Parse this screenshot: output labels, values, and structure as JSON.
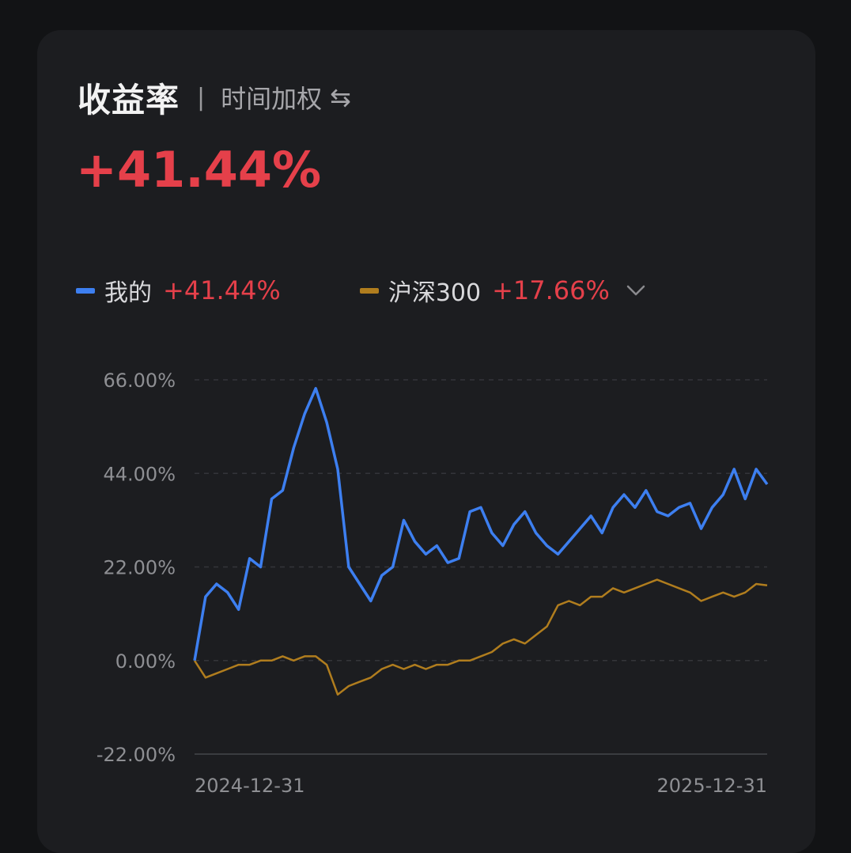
{
  "header": {
    "title": "收益率",
    "separator": "|",
    "mode": "时间加权",
    "swap_icon": "⇆"
  },
  "total_return": "+41.44%",
  "legend": [
    {
      "name": "我的",
      "value": "+41.44%",
      "color": "#3d7ff0"
    },
    {
      "name": "沪深300",
      "value": "+17.66%",
      "color": "#b07d1e"
    }
  ],
  "icons": {
    "swap": "swap-arrows-icon",
    "dropdown": "chevron-down-icon"
  },
  "chart_data": {
    "type": "line",
    "ylim": [
      -22,
      66
    ],
    "yticks": [
      66,
      44,
      22,
      0,
      -22
    ],
    "ytick_labels": [
      "66.00%",
      "44.00%",
      "22.00%",
      "0.00%",
      "-22.00%"
    ],
    "xtick_labels": [
      "2024-12-31",
      "2025-12-31"
    ],
    "grid": true,
    "x": [
      "2024-12-31",
      "2025-01-08",
      "2025-01-15",
      "2025-01-22",
      "2025-01-29",
      "2025-02-05",
      "2025-02-12",
      "2025-02-19",
      "2025-02-26",
      "2025-03-05",
      "2025-03-12",
      "2025-03-19",
      "2025-03-26",
      "2025-04-02",
      "2025-04-09",
      "2025-04-16",
      "2025-04-23",
      "2025-04-30",
      "2025-05-07",
      "2025-05-14",
      "2025-05-21",
      "2025-05-28",
      "2025-06-04",
      "2025-06-11",
      "2025-06-18",
      "2025-06-25",
      "2025-07-02",
      "2025-07-09",
      "2025-07-16",
      "2025-07-23",
      "2025-07-30",
      "2025-08-06",
      "2025-08-13",
      "2025-08-20",
      "2025-08-27",
      "2025-09-03",
      "2025-09-10",
      "2025-09-17",
      "2025-09-24",
      "2025-10-01",
      "2025-10-08",
      "2025-10-15",
      "2025-10-22",
      "2025-10-29",
      "2025-11-05",
      "2025-11-12",
      "2025-11-19",
      "2025-11-26",
      "2025-12-03",
      "2025-12-10",
      "2025-12-17",
      "2025-12-24",
      "2025-12-31"
    ],
    "series": [
      {
        "name": "我的",
        "color": "#3d7ff0",
        "values": [
          0,
          15,
          18,
          16,
          12,
          24,
          22,
          38,
          40,
          50,
          58,
          64,
          56,
          45,
          22,
          18,
          14,
          20,
          22,
          33,
          28,
          25,
          27,
          23,
          24,
          35,
          36,
          30,
          27,
          32,
          35,
          30,
          27,
          25,
          28,
          31,
          34,
          30,
          36,
          39,
          36,
          40,
          35,
          34,
          36,
          37,
          31,
          36,
          39,
          45,
          38,
          45,
          41.44
        ]
      },
      {
        "name": "沪深300",
        "color": "#b07d1e",
        "values": [
          0,
          -4,
          -3,
          -2,
          -1,
          -1,
          0,
          0,
          1,
          0,
          1,
          1,
          -1,
          -8,
          -6,
          -5,
          -4,
          -2,
          -1,
          -2,
          -1,
          -2,
          -1,
          -1,
          0,
          0,
          1,
          2,
          4,
          5,
          4,
          6,
          8,
          13,
          14,
          13,
          15,
          15,
          17,
          16,
          17,
          18,
          19,
          18,
          17,
          16,
          14,
          15,
          16,
          15,
          16,
          18,
          17.66
        ]
      }
    ]
  }
}
